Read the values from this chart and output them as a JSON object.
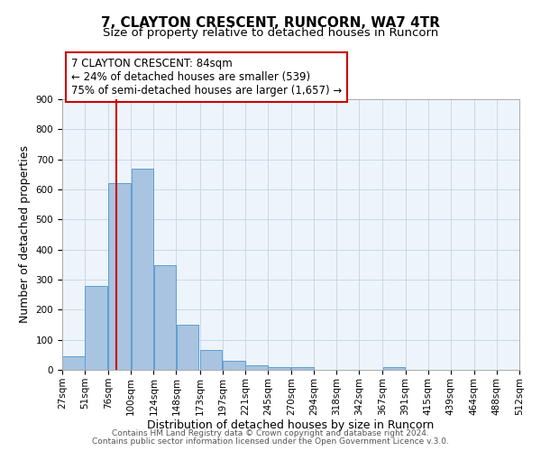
{
  "title": "7, CLAYTON CRESCENT, RUNCORN, WA7 4TR",
  "subtitle": "Size of property relative to detached houses in Runcorn",
  "xlabel": "Distribution of detached houses by size in Runcorn",
  "ylabel": "Number of detached properties",
  "bar_left_edges": [
    27,
    51,
    76,
    100,
    124,
    148,
    173,
    197,
    221,
    245,
    270,
    294,
    318,
    342,
    367,
    391,
    415,
    439,
    464,
    488
  ],
  "bar_heights": [
    44,
    280,
    622,
    670,
    348,
    149,
    65,
    30,
    16,
    10,
    8,
    0,
    0,
    0,
    8,
    0,
    0,
    0,
    0,
    0
  ],
  "bin_width": 24,
  "tick_labels": [
    "27sqm",
    "51sqm",
    "76sqm",
    "100sqm",
    "124sqm",
    "148sqm",
    "173sqm",
    "197sqm",
    "221sqm",
    "245sqm",
    "270sqm",
    "294sqm",
    "318sqm",
    "342sqm",
    "367sqm",
    "391sqm",
    "415sqm",
    "439sqm",
    "464sqm",
    "488sqm",
    "512sqm"
  ],
  "tick_positions": [
    27,
    51,
    76,
    100,
    124,
    148,
    173,
    197,
    221,
    245,
    270,
    294,
    318,
    342,
    367,
    391,
    415,
    439,
    464,
    488,
    512
  ],
  "ylim": [
    0,
    900
  ],
  "yticks": [
    0,
    100,
    200,
    300,
    400,
    500,
    600,
    700,
    800,
    900
  ],
  "bar_color": "#a8c4e0",
  "bar_edge_color": "#5a9fd4",
  "grid_color": "#c8d8e8",
  "background_color": "#eef4fb",
  "vline_x": 84,
  "vline_color": "#cc0000",
  "annotation_text": "7 CLAYTON CRESCENT: 84sqm\n← 24% of detached houses are smaller (539)\n75% of semi-detached houses are larger (1,657) →",
  "annotation_box_color": "#ffffff",
  "annotation_box_edge_color": "#cc0000",
  "footer_line1": "Contains HM Land Registry data © Crown copyright and database right 2024.",
  "footer_line2": "Contains public sector information licensed under the Open Government Licence v.3.0.",
  "title_fontsize": 11,
  "subtitle_fontsize": 9.5,
  "xlabel_fontsize": 9,
  "ylabel_fontsize": 9,
  "tick_fontsize": 7.5,
  "annotation_fontsize": 8.5,
  "footer_fontsize": 6.5
}
